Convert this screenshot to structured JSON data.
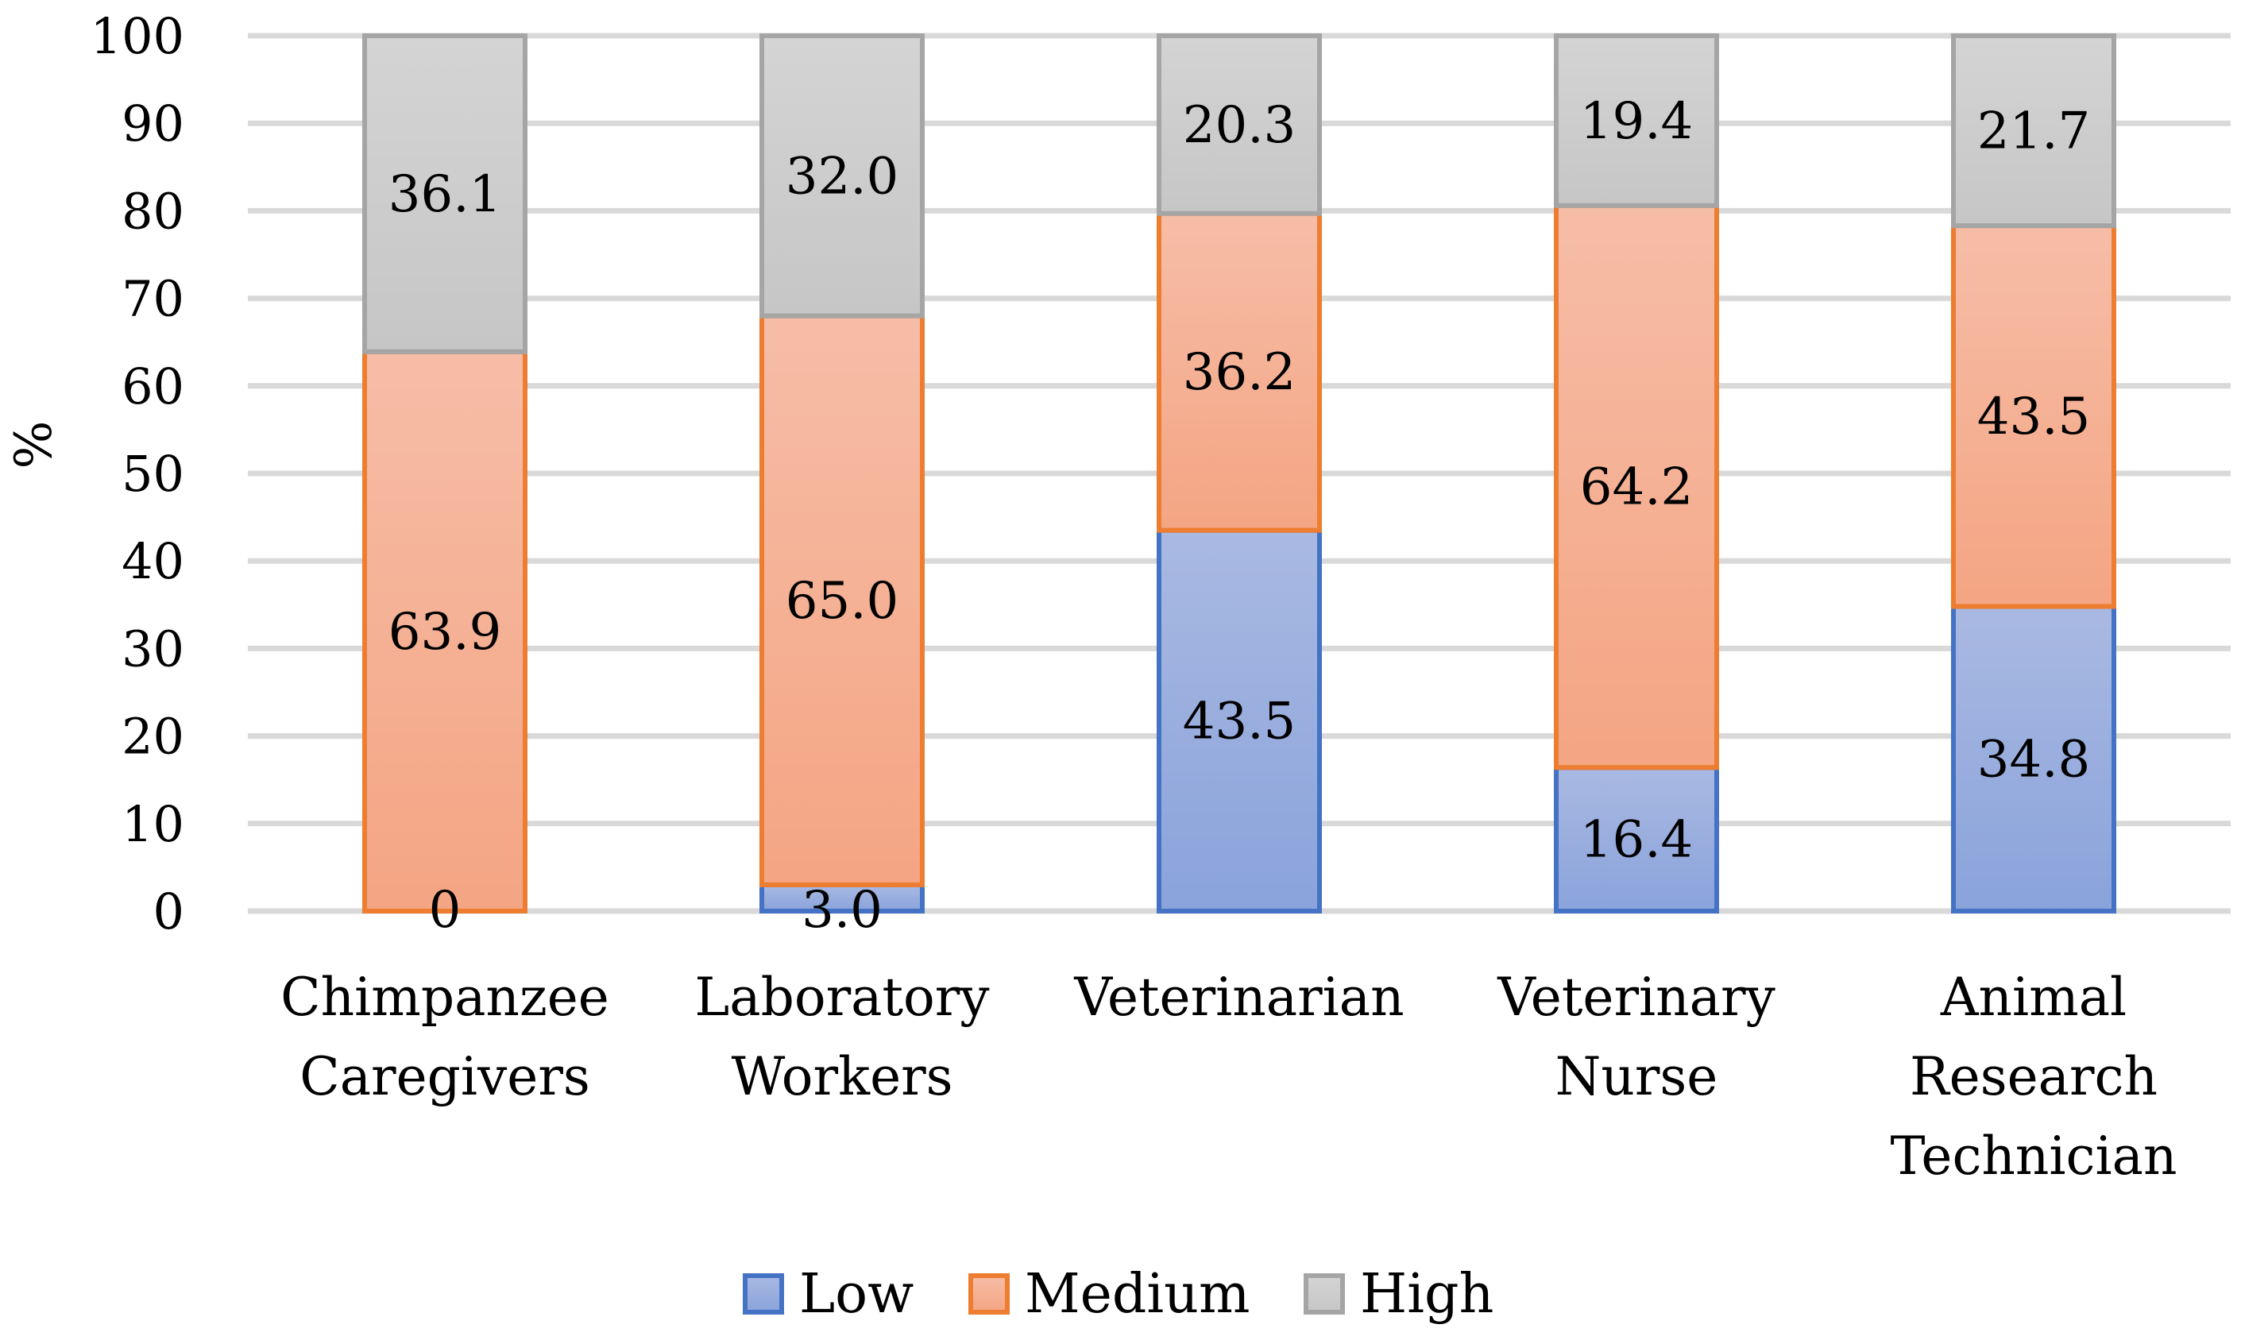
{
  "chart_data": {
    "type": "bar",
    "stacked": true,
    "ylabel": "%",
    "xlabel": "",
    "title": "",
    "ylim": [
      0,
      100
    ],
    "yticks": [
      0,
      10,
      20,
      30,
      40,
      50,
      60,
      70,
      80,
      90,
      100
    ],
    "grid": true,
    "legend_position": "bottom",
    "categories": [
      [
        "Chimpanzee",
        "Caregivers"
      ],
      [
        "Laboratory",
        "Workers"
      ],
      [
        "Veterinarian"
      ],
      [
        "Veterinary",
        "Nurse"
      ],
      [
        "Animal",
        "Research",
        "Technician"
      ]
    ],
    "series": [
      {
        "name": "Low",
        "values": [
          0,
          3.0,
          43.5,
          16.4,
          34.8
        ],
        "labels": [
          "0",
          "3.0",
          "43.5",
          "16.4",
          "34.8"
        ],
        "fill_top": "#a9b9e2",
        "fill_bottom": "#8aa3db",
        "stroke": "#4472c4"
      },
      {
        "name": "Medium",
        "values": [
          63.9,
          65.0,
          36.2,
          64.2,
          43.5
        ],
        "labels": [
          "63.9",
          "65.0",
          "36.2",
          "64.2",
          "43.5"
        ],
        "fill_top": "#f6bda7",
        "fill_bottom": "#f4a583",
        "stroke": "#ed7d31"
      },
      {
        "name": "High",
        "values": [
          36.1,
          32.0,
          20.3,
          19.4,
          21.7
        ],
        "labels": [
          "36.1",
          "32.0",
          "20.3",
          "19.4",
          "21.7"
        ],
        "fill_top": "#d4d4d4",
        "fill_bottom": "#c6c6c6",
        "stroke": "#a5a5a5"
      }
    ]
  }
}
